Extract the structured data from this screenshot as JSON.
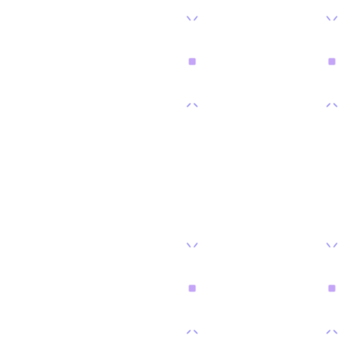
{
  "colors": {
    "background": "#ffffff",
    "chevron": "#8f86f2",
    "dot": "#c4a5f7"
  },
  "icons": {
    "top": "chevrons-converge-down-icon",
    "center": "square-dot-icon",
    "bottom": "chevrons-diverge-down-icon"
  },
  "markers": [
    {
      "id": "top-left"
    },
    {
      "id": "top-right"
    },
    {
      "id": "bottom-left"
    },
    {
      "id": "bottom-right"
    }
  ]
}
